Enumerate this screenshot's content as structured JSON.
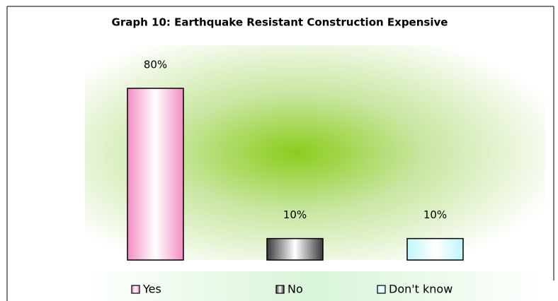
{
  "chart_data": {
    "type": "bar",
    "title": "Graph 10: Earthquake Resistant Construction Expensive",
    "categories": [
      "Yes",
      "No",
      "Don't know"
    ],
    "values": [
      80,
      10,
      10
    ],
    "value_labels": [
      "80%",
      "10%",
      "10%"
    ],
    "colors": [
      "#f48cc4",
      "#3a3a3a",
      "#bff6fb"
    ]
  }
}
